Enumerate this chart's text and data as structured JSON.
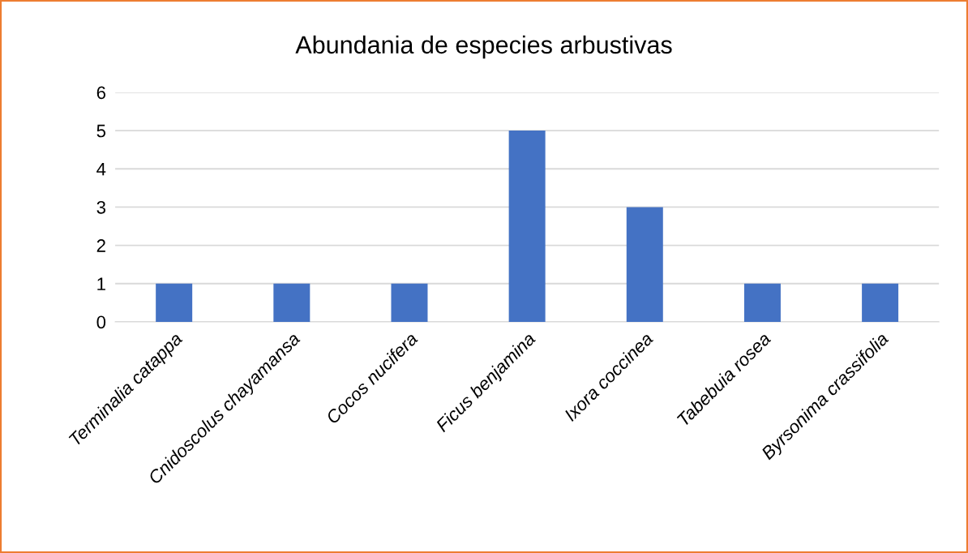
{
  "chart_data": {
    "type": "bar",
    "title": "Abundania de especies arbustivas",
    "categories": [
      "Terminalia catappa",
      "Cnidoscolus chayamansa",
      "Cocos nucifera",
      "Ficus benjamina",
      "Ixora coccinea",
      "Tabebuia rosea",
      "Byrsonima crassifolia"
    ],
    "values": [
      1,
      1,
      1,
      5,
      3,
      1,
      1
    ],
    "color": "#4472c4",
    "ylim": [
      0,
      6
    ],
    "yticks": [
      0,
      1,
      2,
      3,
      4,
      5,
      6
    ],
    "grid": "y"
  }
}
